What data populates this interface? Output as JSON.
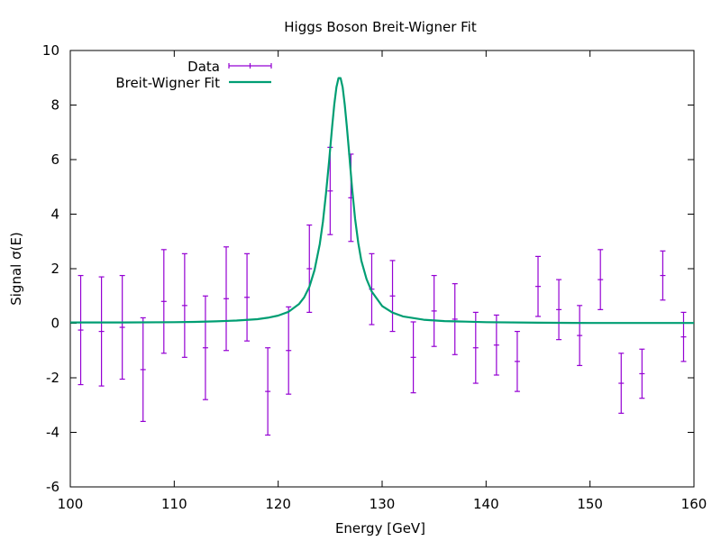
{
  "chart_data": {
    "type": "line",
    "title": "Higgs Boson Breit-Wigner Fit",
    "xlabel": "Energy [GeV]",
    "ylabel": "Signal σ(E)",
    "xlim": [
      100,
      160
    ],
    "ylim": [
      -6,
      10
    ],
    "xticks": [
      100,
      110,
      120,
      130,
      140,
      150,
      160
    ],
    "yticks": [
      -6,
      -4,
      -2,
      0,
      2,
      4,
      6,
      8,
      10
    ],
    "grid": false,
    "legend_position": "top-left",
    "series": [
      {
        "name": "Data",
        "kind": "errorbars",
        "color": "#9400d3",
        "points": [
          {
            "x": 101,
            "y": -0.25,
            "err": 2.0
          },
          {
            "x": 103,
            "y": -0.3,
            "err": 2.0
          },
          {
            "x": 105,
            "y": -0.15,
            "err": 1.9
          },
          {
            "x": 107,
            "y": -1.7,
            "err": 1.9
          },
          {
            "x": 109,
            "y": 0.8,
            "err": 1.9
          },
          {
            "x": 111,
            "y": 0.65,
            "err": 1.9
          },
          {
            "x": 113,
            "y": -0.9,
            "err": 1.9
          },
          {
            "x": 115,
            "y": 0.9,
            "err": 1.9
          },
          {
            "x": 117,
            "y": 0.95,
            "err": 1.6
          },
          {
            "x": 119,
            "y": -2.5,
            "err": 1.6
          },
          {
            "x": 121,
            "y": -1.0,
            "err": 1.6
          },
          {
            "x": 123,
            "y": 2.0,
            "err": 1.6
          },
          {
            "x": 125,
            "y": 4.85,
            "err": 1.6
          },
          {
            "x": 127,
            "y": 4.6,
            "err": 1.6
          },
          {
            "x": 129,
            "y": 1.25,
            "err": 1.3
          },
          {
            "x": 131,
            "y": 1.0,
            "err": 1.3
          },
          {
            "x": 133,
            "y": -1.25,
            "err": 1.3
          },
          {
            "x": 135,
            "y": 0.45,
            "err": 1.3
          },
          {
            "x": 137,
            "y": 0.15,
            "err": 1.3
          },
          {
            "x": 139,
            "y": -0.9,
            "err": 1.3
          },
          {
            "x": 141,
            "y": -0.8,
            "err": 1.1
          },
          {
            "x": 143,
            "y": -1.4,
            "err": 1.1
          },
          {
            "x": 145,
            "y": 1.35,
            "err": 1.1
          },
          {
            "x": 147,
            "y": 0.5,
            "err": 1.1
          },
          {
            "x": 149,
            "y": -0.45,
            "err": 1.1
          },
          {
            "x": 151,
            "y": 1.6,
            "err": 1.1
          },
          {
            "x": 153,
            "y": -2.2,
            "err": 1.1
          },
          {
            "x": 155,
            "y": -1.85,
            "err": 0.9
          },
          {
            "x": 157,
            "y": 1.75,
            "err": 0.9
          },
          {
            "x": 159,
            "y": -0.5,
            "err": 0.9
          }
        ]
      },
      {
        "name": "Breit-Wigner Fit",
        "kind": "line",
        "color": "#009e73",
        "x": [
          100,
          105,
          110,
          112,
          114,
          116,
          118,
          119,
          120,
          121,
          122,
          122.5,
          123,
          123.5,
          124,
          124.3,
          124.6,
          124.9,
          125.2,
          125.4,
          125.6,
          125.8,
          126,
          126.2,
          126.4,
          126.6,
          126.8,
          127.1,
          127.4,
          127.7,
          128,
          128.5,
          129,
          130,
          131,
          132,
          134,
          136,
          138,
          140,
          145,
          150,
          155,
          160
        ],
        "y": [
          0.03,
          0.03,
          0.04,
          0.05,
          0.07,
          0.1,
          0.15,
          0.2,
          0.28,
          0.42,
          0.7,
          0.95,
          1.34,
          1.95,
          2.9,
          3.72,
          4.75,
          5.96,
          7.23,
          8.02,
          8.65,
          8.99,
          8.99,
          8.65,
          8.02,
          7.23,
          6.36,
          4.97,
          3.83,
          2.95,
          2.3,
          1.62,
          1.16,
          0.63,
          0.39,
          0.25,
          0.13,
          0.08,
          0.06,
          0.04,
          0.02,
          0.01,
          0.01,
          0.01
        ]
      }
    ]
  }
}
